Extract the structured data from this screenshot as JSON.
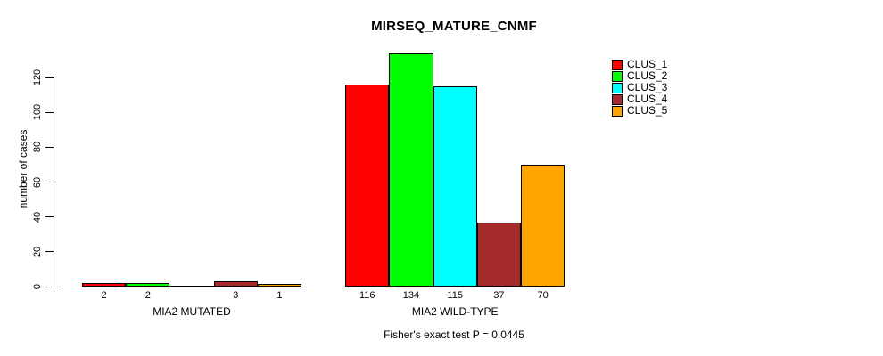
{
  "chart_data": {
    "type": "bar",
    "title": "MIRSEQ_MATURE_CNMF",
    "xlabel": "",
    "ylabel": "number of cases",
    "ylim": [
      0,
      134
    ],
    "yticks": [
      0,
      20,
      40,
      60,
      80,
      100,
      120
    ],
    "grid": false,
    "legend_position": "right",
    "legend": [
      {
        "name": "CLUS_1",
        "color": "#ff0000"
      },
      {
        "name": "CLUS_2",
        "color": "#00ff00"
      },
      {
        "name": "CLUS_3",
        "color": "#00ffff"
      },
      {
        "name": "CLUS_4",
        "color": "#a52a2a"
      },
      {
        "name": "CLUS_5",
        "color": "#ffa500"
      }
    ],
    "groups": [
      {
        "label": "MIA2 MUTATED",
        "values": [
          2,
          2,
          0,
          3,
          1
        ],
        "bar_labels": [
          "2",
          "2",
          "",
          "3",
          "1"
        ]
      },
      {
        "label": "MIA2 WILD-TYPE",
        "values": [
          116,
          134,
          115,
          37,
          70
        ],
        "bar_labels": [
          "116",
          "134",
          "115",
          "37",
          "70"
        ]
      }
    ],
    "footnote": "Fisher's exact test P = 0.0445",
    "colors": {
      "background": "#ffffff",
      "axis": "#000000",
      "text": "#000000"
    }
  }
}
